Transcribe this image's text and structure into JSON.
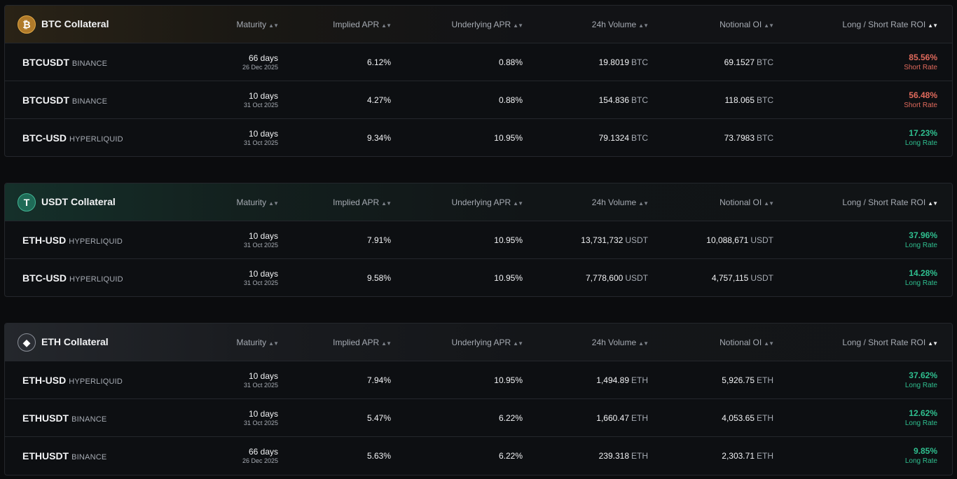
{
  "columns": {
    "maturity": "Maturity",
    "implied_apr": "Implied APR",
    "underlying_apr": "Underlying APR",
    "volume": "24h Volume",
    "notional_oi": "Notional OI",
    "roi": "Long / Short Rate ROI"
  },
  "icons": {
    "sort": "sort-icon",
    "sort_active": "sort-desc-icon",
    "btc": "bitcoin-icon",
    "usdt": "tether-icon",
    "eth": "ethereum-icon"
  },
  "colors": {
    "short_rate": "#e06a5c",
    "long_rate": "#2fbf8f",
    "background": "#0b0c0e"
  },
  "groups": [
    {
      "title": "BTC Collateral",
      "rows": [
        {
          "symbol": "BTCUSDT",
          "exchange": "BINANCE",
          "days": "66 days",
          "date": "26 Dec 2025",
          "implied": "6.12%",
          "underlying": "0.88%",
          "volume": "19.8019",
          "volume_unit": "BTC",
          "oi": "69.1527",
          "oi_unit": "BTC",
          "roi": "85.56%",
          "roi_label": "Short Rate"
        },
        {
          "symbol": "BTCUSDT",
          "exchange": "BINANCE",
          "days": "10 days",
          "date": "31 Oct 2025",
          "implied": "4.27%",
          "underlying": "0.88%",
          "volume": "154.836",
          "volume_unit": "BTC",
          "oi": "118.065",
          "oi_unit": "BTC",
          "roi": "56.48%",
          "roi_label": "Short Rate"
        },
        {
          "symbol": "BTC-USD",
          "exchange": "HYPERLIQUID",
          "days": "10 days",
          "date": "31 Oct 2025",
          "implied": "9.34%",
          "underlying": "10.95%",
          "volume": "79.1324",
          "volume_unit": "BTC",
          "oi": "73.7983",
          "oi_unit": "BTC",
          "roi": "17.23%",
          "roi_label": "Long Rate"
        }
      ]
    },
    {
      "title": "USDT Collateral",
      "rows": [
        {
          "symbol": "ETH-USD",
          "exchange": "HYPERLIQUID",
          "days": "10 days",
          "date": "31 Oct 2025",
          "implied": "7.91%",
          "underlying": "10.95%",
          "volume": "13,731,732",
          "volume_unit": "USDT",
          "oi": "10,088,671",
          "oi_unit": "USDT",
          "roi": "37.96%",
          "roi_label": "Long Rate"
        },
        {
          "symbol": "BTC-USD",
          "exchange": "HYPERLIQUID",
          "days": "10 days",
          "date": "31 Oct 2025",
          "implied": "9.58%",
          "underlying": "10.95%",
          "volume": "7,778,600",
          "volume_unit": "USDT",
          "oi": "4,757,115",
          "oi_unit": "USDT",
          "roi": "14.28%",
          "roi_label": "Long Rate"
        }
      ]
    },
    {
      "title": "ETH Collateral",
      "rows": [
        {
          "symbol": "ETH-USD",
          "exchange": "HYPERLIQUID",
          "days": "10 days",
          "date": "31 Oct 2025",
          "implied": "7.94%",
          "underlying": "10.95%",
          "volume": "1,494.89",
          "volume_unit": "ETH",
          "oi": "5,926.75",
          "oi_unit": "ETH",
          "roi": "37.62%",
          "roi_label": "Long Rate"
        },
        {
          "symbol": "ETHUSDT",
          "exchange": "BINANCE",
          "days": "10 days",
          "date": "31 Oct 2025",
          "implied": "5.47%",
          "underlying": "6.22%",
          "volume": "1,660.47",
          "volume_unit": "ETH",
          "oi": "4,053.65",
          "oi_unit": "ETH",
          "roi": "12.62%",
          "roi_label": "Long Rate"
        },
        {
          "symbol": "ETHUSDT",
          "exchange": "BINANCE",
          "days": "66 days",
          "date": "26 Dec 2025",
          "implied": "5.63%",
          "underlying": "6.22%",
          "volume": "239.318",
          "volume_unit": "ETH",
          "oi": "2,303.71",
          "oi_unit": "ETH",
          "roi": "9.85%",
          "roi_label": "Long Rate"
        }
      ]
    }
  ]
}
